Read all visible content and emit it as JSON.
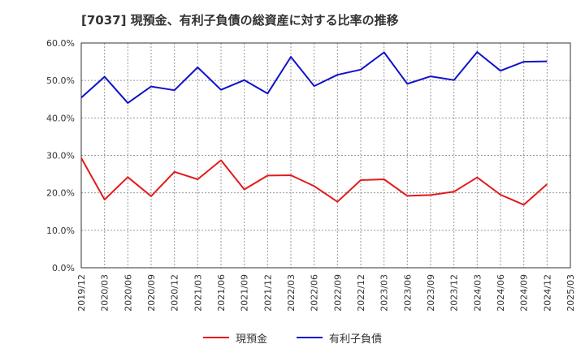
{
  "title": "[7037]  現預金、有利子負債の総資産に対する比率の推移",
  "chart_data": {
    "type": "line",
    "x": [
      "2019/12",
      "2020/03",
      "2020/06",
      "2020/09",
      "2020/12",
      "2021/03",
      "2021/06",
      "2021/09",
      "2021/12",
      "2022/03",
      "2022/06",
      "2022/09",
      "2022/12",
      "2023/03",
      "2023/06",
      "2023/09",
      "2023/12",
      "2024/03",
      "2024/06",
      "2024/09",
      "2024/12",
      "2025/03"
    ],
    "ylim": [
      0,
      60
    ],
    "yticks": [
      0,
      10,
      20,
      30,
      40,
      50,
      60
    ],
    "ytick_labels": [
      "0.0%",
      "10.0%",
      "20.0%",
      "30.0%",
      "40.0%",
      "50.0%",
      "60.0%"
    ],
    "grid": true,
    "legend_position": "bottom",
    "series": [
      {
        "name": "現預金",
        "color": "#e31a1c",
        "values": [
          29.3,
          18.2,
          24.2,
          19.1,
          25.6,
          23.6,
          28.7,
          20.9,
          24.6,
          24.7,
          21.8,
          17.6,
          23.4,
          23.6,
          19.2,
          19.4,
          20.3,
          24.1,
          19.5,
          16.8,
          22.3,
          null
        ]
      },
      {
        "name": "有利子負債",
        "color": "#1111cc",
        "values": [
          45.4,
          51.0,
          44.0,
          48.4,
          47.4,
          53.5,
          47.5,
          50.1,
          46.5,
          56.3,
          48.5,
          51.5,
          52.9,
          57.5,
          49.1,
          51.1,
          50.1,
          57.6,
          52.6,
          55.0,
          55.1,
          null
        ]
      }
    ]
  }
}
